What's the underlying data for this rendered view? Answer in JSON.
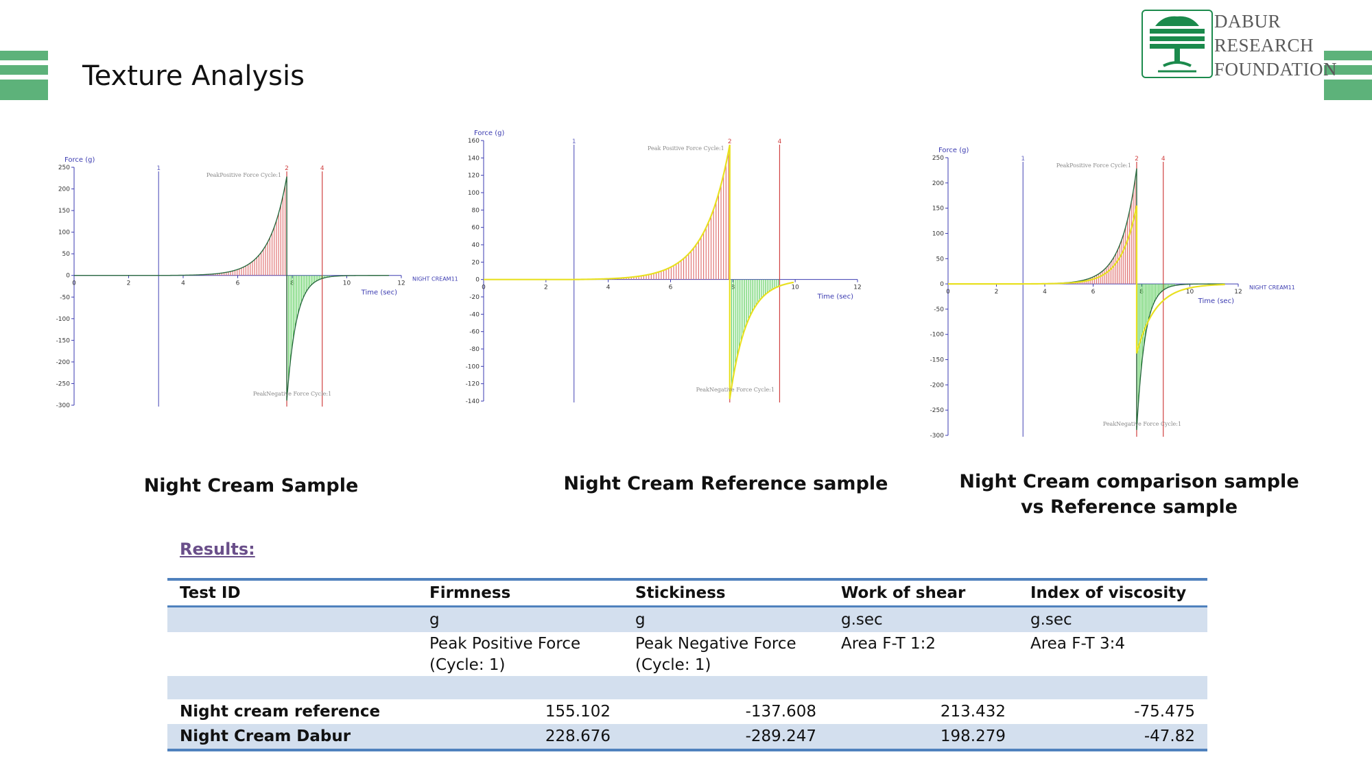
{
  "slide": {
    "title": "Texture Analysis"
  },
  "logo": {
    "lines": [
      "DABUR",
      "RESEARCH",
      "FOUNDATION"
    ],
    "color": "#1b8a4c"
  },
  "charts": [
    {
      "caption": [
        "Night Cream Sample"
      ]
    },
    {
      "caption": [
        "Night Cream Reference sample"
      ]
    },
    {
      "caption": [
        "Night Cream comparison sample",
        "vs Reference sample"
      ]
    }
  ],
  "chart_data": [
    {
      "type": "area",
      "ylabel": "Force (g)",
      "xlabel": "Time (sec)",
      "xlim": [
        0,
        12
      ],
      "ylim": [
        -300,
        250
      ],
      "xticks": [
        "0",
        "2",
        "4",
        "6",
        "8",
        "10",
        "12"
      ],
      "yticks": [
        "250",
        "200",
        "150",
        "100",
        "50",
        "0",
        "-50",
        "-100",
        "-150",
        "-200",
        "-250",
        "-300"
      ],
      "markers": [
        {
          "label": "1",
          "x": 3.1
        },
        {
          "label": "2",
          "x": 7.8
        },
        {
          "label": "4",
          "x": 9.1
        }
      ],
      "series": [
        {
          "name": "NIGHT CREAM11",
          "peak_positive": 228.676,
          "peak_negative": -289.247
        }
      ],
      "annotations": [
        "PeakPositive Force Cycle:1",
        "PeakNegative Force Cycle:1"
      ]
    },
    {
      "type": "area",
      "ylabel": "Force (g)",
      "xlabel": "Time (sec)",
      "xlim": [
        0,
        12
      ],
      "ylim": [
        -140,
        160
      ],
      "xticks": [
        "0",
        "2",
        "4",
        "6",
        "8",
        "10",
        "12"
      ],
      "yticks": [
        "160",
        "140",
        "120",
        "100",
        "80",
        "60",
        "40",
        "20",
        "0",
        "-20",
        "-40",
        "-60",
        "-80",
        "-100",
        "-120",
        "-140"
      ],
      "markers": [
        {
          "label": "1",
          "x": 2.9
        },
        {
          "label": "2",
          "x": 7.9
        },
        {
          "label": "4",
          "x": 9.5
        }
      ],
      "series": [
        {
          "name": "",
          "peak_positive": 155.102,
          "peak_negative": -137.608
        }
      ],
      "annotations": [
        "Peak Positive Force Cycle:1",
        "PeakNegative Force Cycle:1"
      ]
    },
    {
      "type": "area",
      "ylabel": "Force (g)",
      "xlabel": "Time (sec)",
      "xlim": [
        0,
        12
      ],
      "ylim": [
        -300,
        250
      ],
      "xticks": [
        "0",
        "2",
        "4",
        "6",
        "8",
        "10",
        "12"
      ],
      "yticks": [
        "250",
        "200",
        "150",
        "100",
        "50",
        "0",
        "-50",
        "-100",
        "-150",
        "-200",
        "-250",
        "-300"
      ],
      "markers": [
        {
          "label": "1",
          "x": 3.1
        },
        {
          "label": "2",
          "x": 7.8
        },
        {
          "label": "4",
          "x": 8.9
        }
      ],
      "series": [
        {
          "name": "NIGHT CREAM11",
          "peak_positive": 228.676,
          "peak_negative": -289.247
        },
        {
          "name": "",
          "peak_positive": 155.102,
          "peak_negative": -137.608
        }
      ],
      "annotations": [
        "PeakPositive Force Cycle:1",
        "PeakNegative Force Cycle:1"
      ]
    }
  ],
  "results": {
    "heading": "Results:",
    "columns": [
      "Test ID",
      "Firmness",
      "Stickiness",
      "Work of shear",
      "Index of viscosity"
    ],
    "units": [
      "",
      "g",
      "g",
      "g.sec",
      "g.sec"
    ],
    "descriptions": [
      "",
      "Peak Positive Force (Cycle: 1)",
      "Peak Negative Force (Cycle: 1)",
      "Area F-T 1:2",
      "Area F-T 3:4"
    ],
    "rows": [
      {
        "id": "Night cream reference",
        "firmness": "155.102",
        "stickiness": "-137.608",
        "work": "213.432",
        "viscosity": "-75.475"
      },
      {
        "id": "Night Cream Dabur",
        "firmness": "228.676",
        "stickiness": "-289.247",
        "work": "198.279",
        "viscosity": "-47.82"
      }
    ]
  }
}
